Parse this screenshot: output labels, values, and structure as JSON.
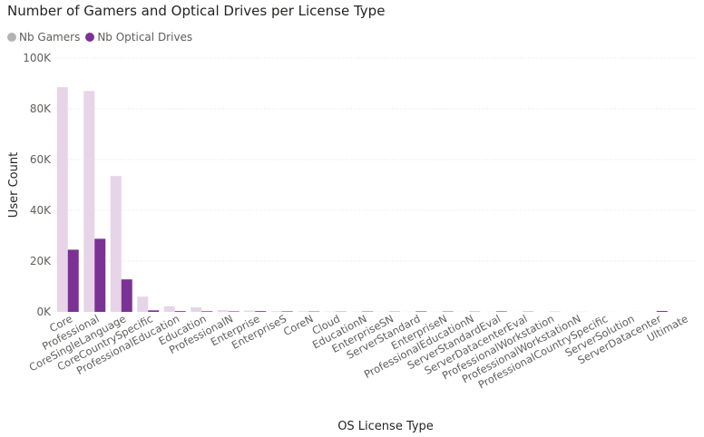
{
  "chart_data": {
    "type": "bar",
    "title": "Number of Gamers and Optical Drives per License Type",
    "xlabel": "OS License Type",
    "ylabel": "User Count",
    "ylim": [
      0,
      100000
    ],
    "yticks": [
      0,
      20000,
      40000,
      60000,
      80000,
      100000
    ],
    "ytick_labels": [
      "0K",
      "20K",
      "40K",
      "60K",
      "80K",
      "100K"
    ],
    "legend_position": "top-left",
    "grid": true,
    "categories": [
      "Core",
      "Professional",
      "CoreSingleLanguage",
      "CoreCountrySpecific",
      "ProfessionalEducation",
      "Education",
      "ProfessionalN",
      "Enterprise",
      "EnterpriseS",
      "CoreN",
      "Cloud",
      "EducationN",
      "EnterpriseSN",
      "ServerStandard",
      "EnterpriseN",
      "ProfessionalEducationN",
      "ServerStandardEval",
      "ServerDatacenterEval",
      "ProfessionalWorkstation",
      "ProfessionalWorkstationN",
      "ProfessionalCountrySpecific",
      "ServerSolution",
      "ServerDatacenter",
      "Ultimate"
    ],
    "series": [
      {
        "name": "Nb Gamers",
        "color": "#e7d4e8",
        "values": [
          88500,
          87000,
          53500,
          6000,
          2200,
          1800,
          700,
          500,
          300,
          250,
          150,
          100,
          80,
          60,
          50,
          40,
          30,
          20,
          15,
          10,
          5,
          3,
          2,
          1
        ]
      },
      {
        "name": "Nb Optical Drives",
        "color": "#7b3294",
        "values": [
          24500,
          28800,
          12800,
          600,
          300,
          250,
          200,
          300,
          200,
          150,
          100,
          150,
          100,
          200,
          150,
          100,
          200,
          100,
          50,
          20,
          10,
          10,
          350,
          5
        ]
      }
    ]
  },
  "legend": {
    "marker_colors": [
      "#b3b3b3",
      "#7b3294"
    ]
  }
}
